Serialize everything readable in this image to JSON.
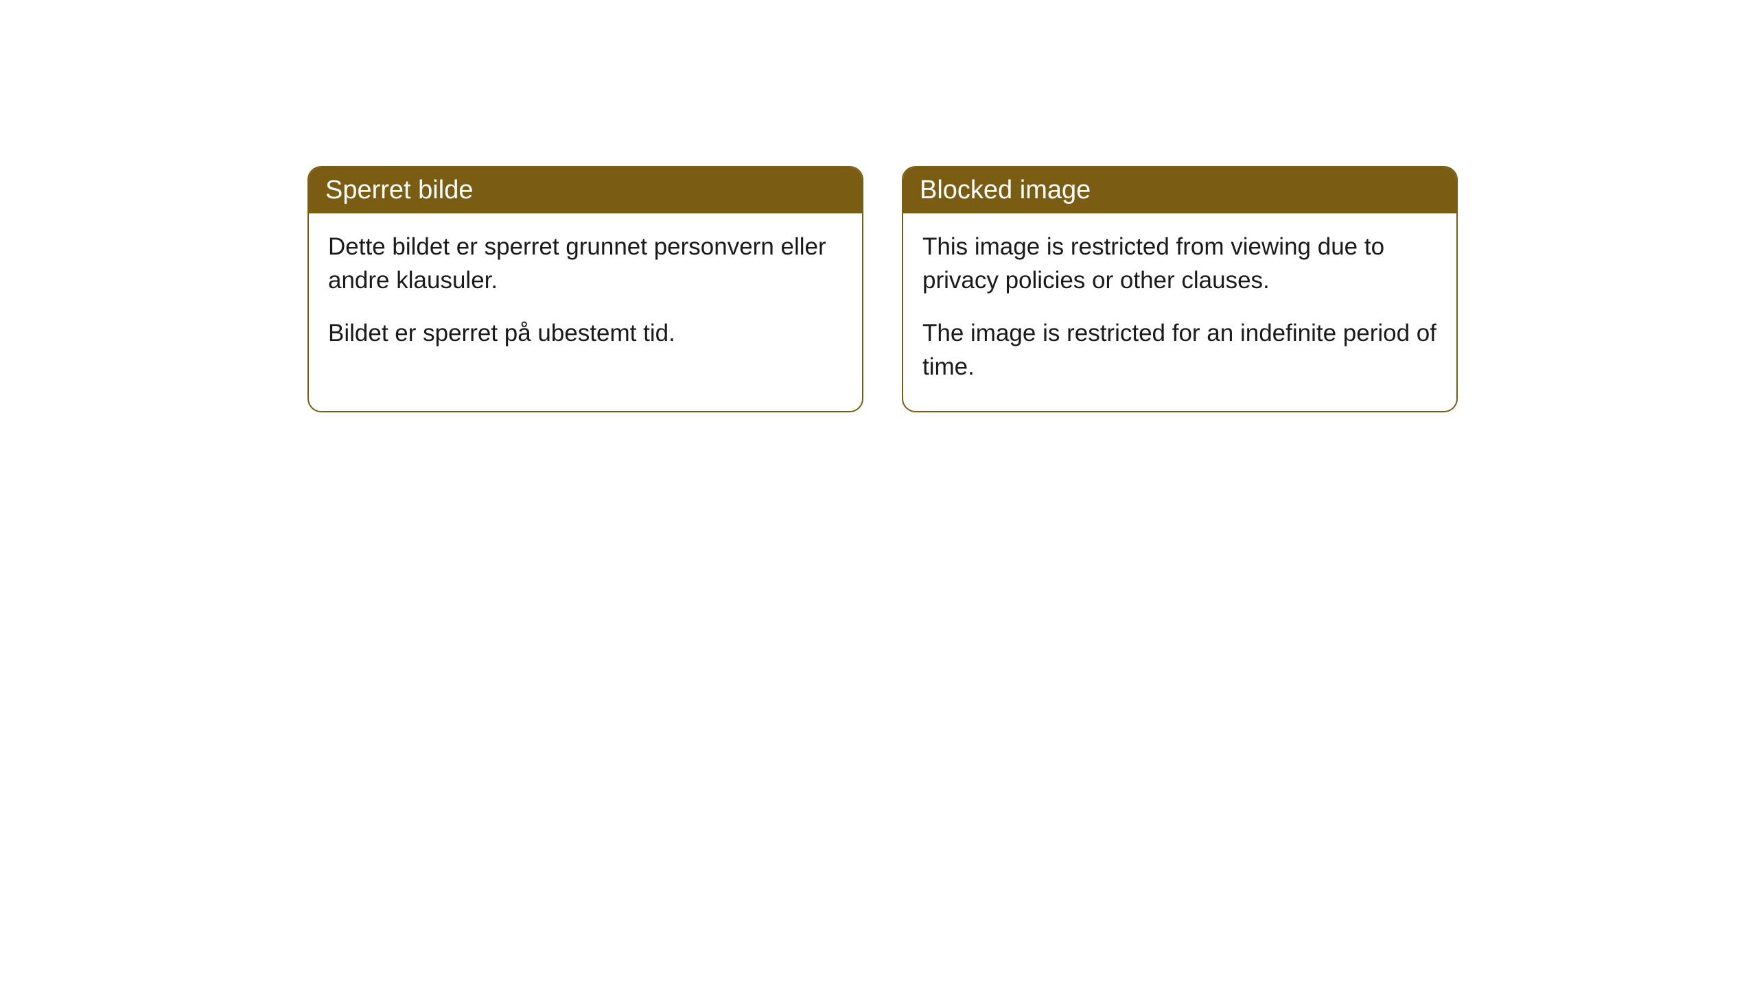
{
  "cards": [
    {
      "header": "Sperret bilde",
      "paragraph1": "Dette bildet er sperret grunnet personvern eller andre klausuler.",
      "paragraph2": "Bildet er sperret på ubestemt tid."
    },
    {
      "header": "Blocked image",
      "paragraph1": "This image is restricted from viewing due to privacy policies or other clauses.",
      "paragraph2": "The image is restricted for an indefinite period of time."
    }
  ],
  "styling": {
    "header_background_color": "#7a5d13",
    "header_text_color": "#ffffff",
    "border_color": "#7a5d13",
    "body_text_color": "#1a1a1a",
    "card_background_color": "#ffffff",
    "page_background_color": "#ffffff",
    "border_radius": 20,
    "header_font_size": 38,
    "body_font_size": 35
  }
}
